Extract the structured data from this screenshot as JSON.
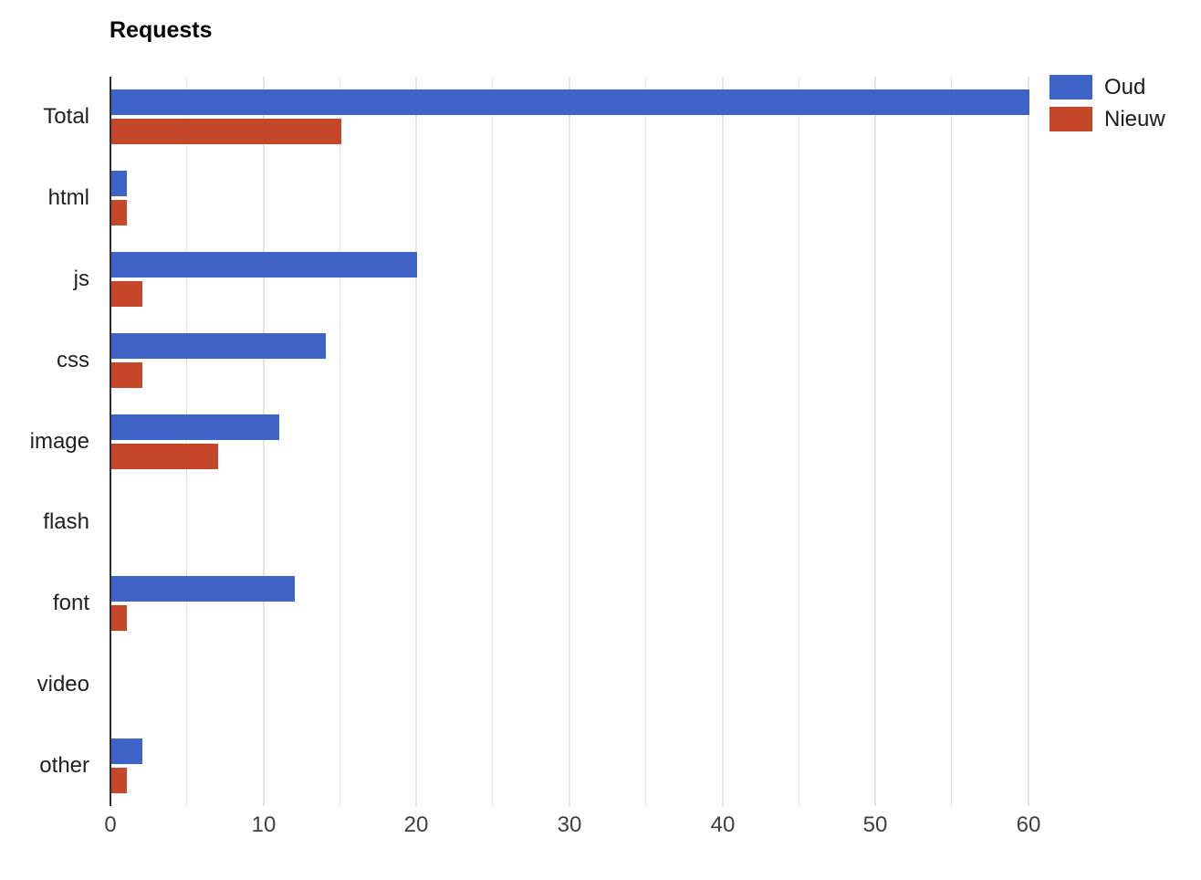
{
  "title": "Requests",
  "chart_data": {
    "type": "bar",
    "orientation": "horizontal",
    "title": "Requests",
    "categories": [
      "Total",
      "html",
      "js",
      "css",
      "image",
      "flash",
      "font",
      "video",
      "other"
    ],
    "series": [
      {
        "name": "Oud",
        "color": "#3d64c6",
        "values": [
          60,
          1,
          20,
          14,
          11,
          0,
          12,
          0,
          2
        ]
      },
      {
        "name": "Nieuw",
        "color": "#c5472a",
        "values": [
          15,
          1,
          2,
          2,
          7,
          0,
          1,
          0,
          1
        ]
      }
    ],
    "xlim": [
      0,
      60
    ],
    "x_ticks": [
      0,
      10,
      20,
      30,
      40,
      50,
      60
    ],
    "x_gridline_step": 5,
    "grid": true,
    "legend_position": "top-right",
    "colors": {
      "axis_line": "#2e2e2e",
      "gridline": "#e2e2e2",
      "tick_text": "#3f3f3f",
      "category_text": "#1f1f1f",
      "title_text": "#000000"
    }
  }
}
